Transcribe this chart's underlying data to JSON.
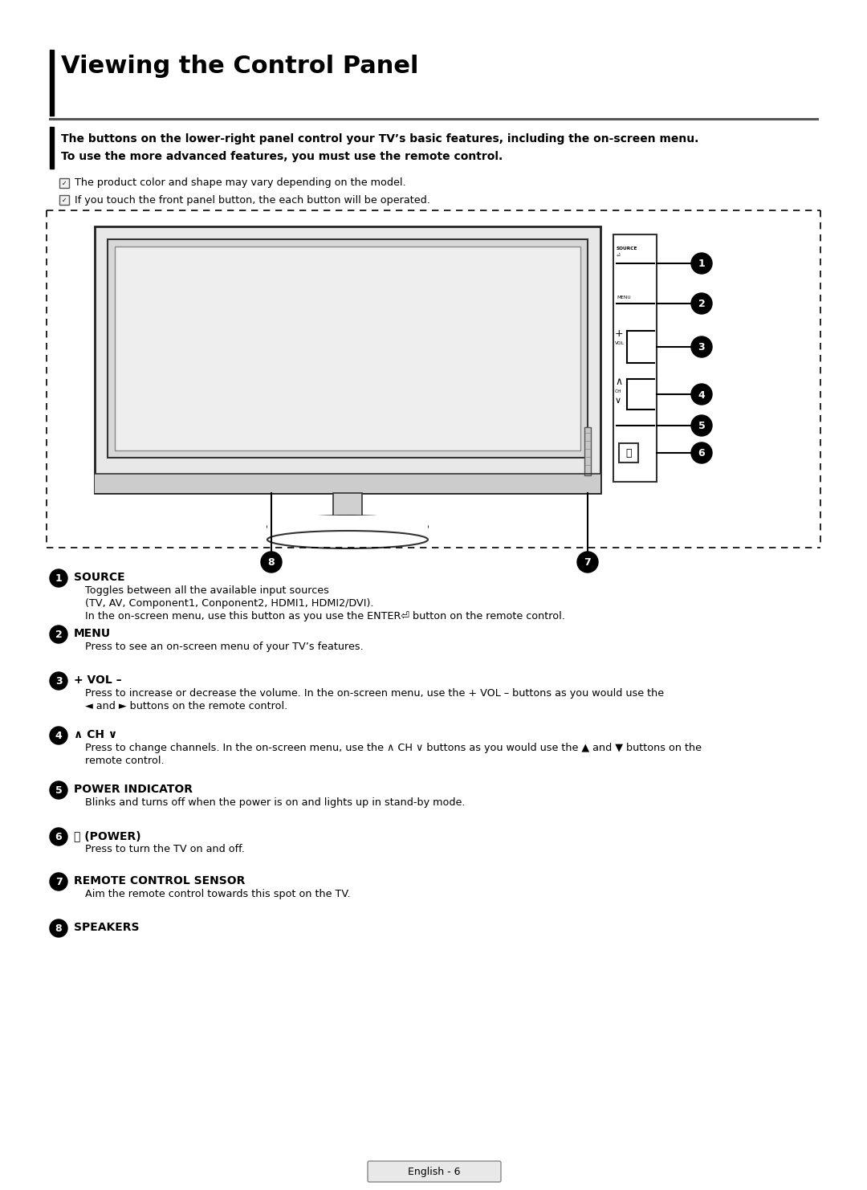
{
  "title": "Viewing the Control Panel",
  "bg": "#ffffff",
  "subtitle": "The buttons on the lower-right panel control your TV’s basic features, including the on-screen menu.\nTo use the more advanced features, you must use the remote control.",
  "notes": [
    "The product color and shape may vary depending on the model.",
    "If you touch the front panel button, the each button will be operated."
  ],
  "items": [
    {
      "num": "1",
      "label": "SOURCE",
      "label_extra": "⏎",
      "body_lines": [
        "Toggles between all the available input sources",
        "(TV, AV, Component1, Conponent2, HDMI1, HDMI2/DVI).",
        "In the on-screen menu, use this button as you use the ENTER⏎ button on the remote control."
      ]
    },
    {
      "num": "2",
      "label": "MENU",
      "label_extra": "",
      "body_lines": [
        "Press to see an on-screen menu of your TV’s features."
      ]
    },
    {
      "num": "3",
      "label": "+ VOL –",
      "label_extra": "",
      "body_lines": [
        "Press to increase or decrease the volume. In the on-screen menu, use the + VOL – buttons as you would use the",
        "◄ and ► buttons on the remote control."
      ]
    },
    {
      "num": "4",
      "label": "∧ CH ∨",
      "label_extra": "",
      "body_lines": [
        "Press to change channels. In the on-screen menu, use the ∧ CH ∨ buttons as you would use the ▲ and ▼ buttons on the",
        "remote control."
      ]
    },
    {
      "num": "5",
      "label": "POWER INDICATOR",
      "label_extra": "",
      "body_lines": [
        "Blinks and turns off when the power is on and lights up in stand-by mode."
      ]
    },
    {
      "num": "6",
      "label": "⏻ (POWER)",
      "label_extra": "",
      "body_lines": [
        "Press to turn the TV on and off."
      ]
    },
    {
      "num": "7",
      "label": "REMOTE CONTROL SENSOR",
      "label_extra": "",
      "body_lines": [
        "Aim the remote control towards this spot on the TV."
      ]
    },
    {
      "num": "8",
      "label": "SPEAKERS",
      "label_extra": "",
      "body_lines": []
    }
  ],
  "footer": "English - 6"
}
